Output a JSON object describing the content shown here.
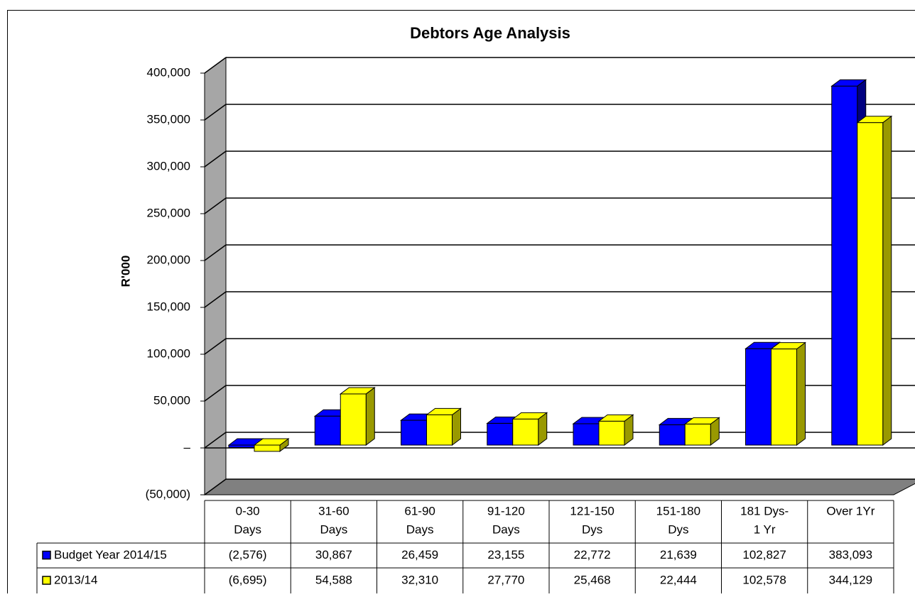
{
  "chart_data": {
    "type": "bar3d",
    "title": "Debtors Age Analysis",
    "y_label": "R'000",
    "categories": [
      [
        "0-30",
        "Days"
      ],
      [
        "31-60",
        "Days"
      ],
      [
        "61-90",
        "Days"
      ],
      [
        "91-120",
        "Days"
      ],
      [
        "121-150",
        "Dys"
      ],
      [
        "151-180",
        "Dys"
      ],
      [
        "181 Dys-",
        "1 Yr"
      ],
      [
        "Over 1Yr"
      ]
    ],
    "series": [
      {
        "name": "Budget Year 2014/15",
        "color": "#0000ff",
        "side_color": "#000080",
        "values": [
          -2576,
          30867,
          26459,
          23155,
          22772,
          21639,
          102827,
          383093
        ],
        "value_labels": [
          "(2,576)",
          "30,867",
          "26,459",
          "23,155",
          "22,772",
          "21,639",
          "102,827",
          "383,093"
        ]
      },
      {
        "name": "2013/14",
        "color": "#ffff00",
        "side_color": "#999900",
        "values": [
          -6695,
          54588,
          32310,
          27770,
          25468,
          22444,
          102578,
          344129
        ],
        "value_labels": [
          "(6,695)",
          "54,588",
          "32,310",
          "27,770",
          "25,468",
          "22,444",
          "102,578",
          "344,129"
        ]
      }
    ],
    "ylim": [
      -50000,
      400000
    ],
    "yticks": [
      {
        "value": -50000,
        "label": "(50,000)"
      },
      {
        "value": 0,
        "label": "–"
      },
      {
        "value": 50000,
        "label": "50,000"
      },
      {
        "value": 100000,
        "label": "100,000"
      },
      {
        "value": 150000,
        "label": "150,000"
      },
      {
        "value": 200000,
        "label": "200,000"
      },
      {
        "value": 250000,
        "label": "250,000"
      },
      {
        "value": 300000,
        "label": "300,000"
      },
      {
        "value": 350000,
        "label": "350,000"
      },
      {
        "value": 400000,
        "label": "400,000"
      }
    ],
    "grid": true,
    "data_table": true
  }
}
